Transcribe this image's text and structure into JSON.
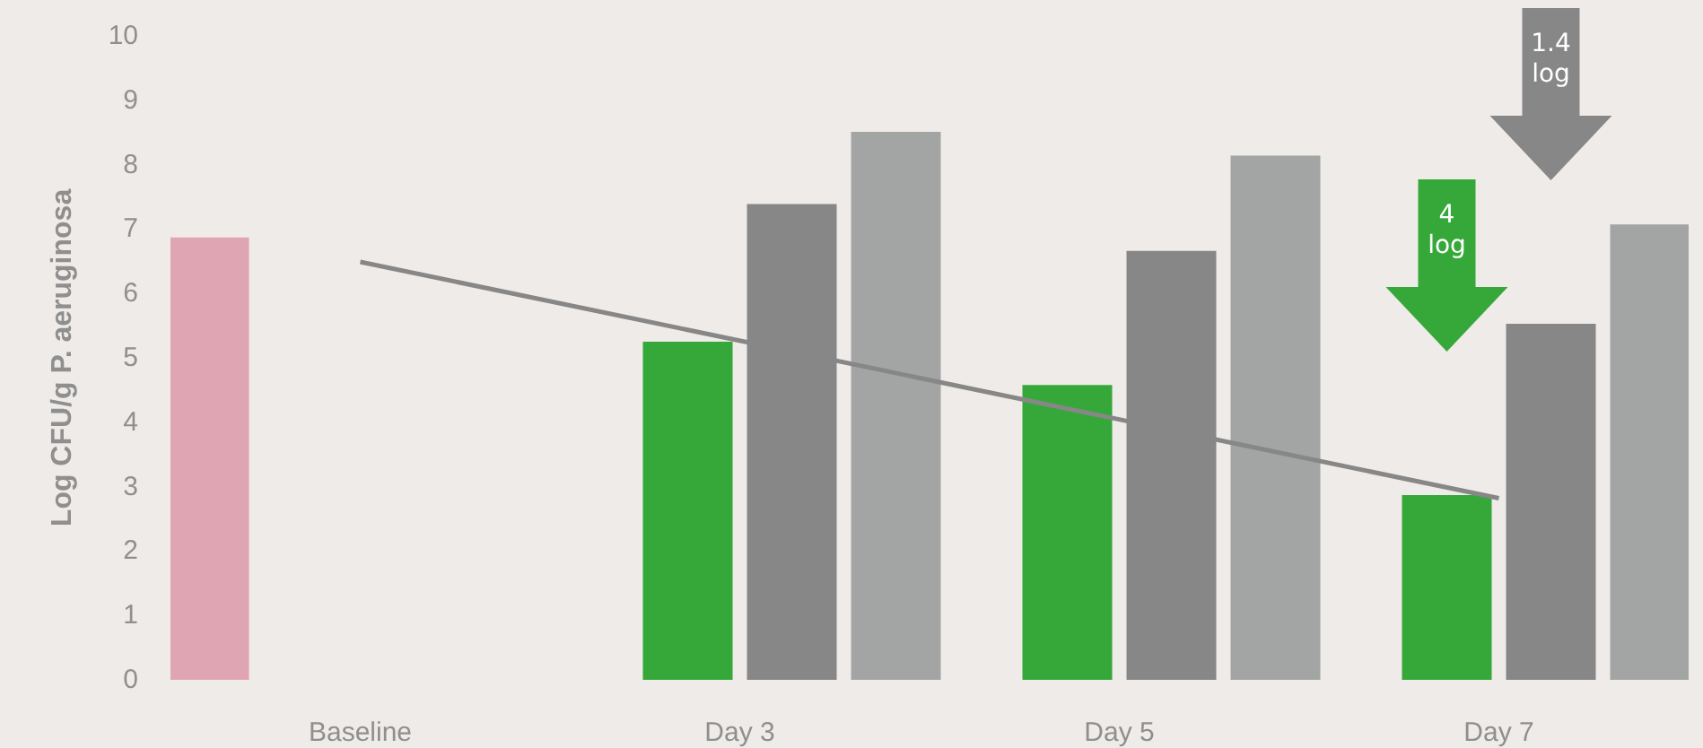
{
  "chart_data": {
    "type": "bar",
    "ylabel": "Log CFU/g P. aeruginosa",
    "categories": [
      "Baseline",
      "Day 3",
      "Day 5",
      "Day 7"
    ],
    "series": [
      {
        "color": "#e0a5b2",
        "values": [
          6.87,
          null,
          null,
          null
        ]
      },
      {
        "color": "#36a83a",
        "values": [
          null,
          5.25,
          4.58,
          2.87
        ]
      },
      {
        "color": "#878787",
        "values": [
          null,
          7.39,
          6.66,
          5.53
        ]
      },
      {
        "color": "#a3a5a5",
        "values": [
          null,
          8.51,
          8.14,
          7.07
        ]
      },
      {
        "type": "line",
        "color": "#878787",
        "x": [
          "Baseline",
          "Day 7"
        ],
        "values": [
          6.49,
          2.82
        ],
        "marker": "none"
      }
    ],
    "ylim": [
      0,
      10
    ],
    "yticks": [
      0,
      1,
      2,
      3,
      4,
      5,
      6,
      7,
      8,
      9,
      10
    ],
    "grid": false,
    "annotations": [
      "4 log",
      "1.4 log"
    ]
  }
}
